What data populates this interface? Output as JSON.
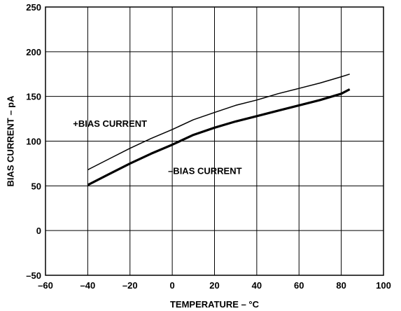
{
  "chart_data": {
    "type": "line",
    "title": "",
    "xlabel": "TEMPERATURE – °C",
    "ylabel": "BIAS CURRENT – pA",
    "xlim": [
      -60,
      100
    ],
    "ylim": [
      -50,
      250
    ],
    "x_ticks": [
      -60,
      -40,
      -20,
      0,
      20,
      40,
      60,
      80,
      100
    ],
    "y_ticks": [
      -50,
      0,
      50,
      100,
      150,
      200,
      250
    ],
    "x_tick_labels": [
      "–60",
      "–40",
      "–20",
      "0",
      "20",
      "40",
      "60",
      "80",
      "100"
    ],
    "y_tick_labels": [
      "–50",
      "0",
      "50",
      "100",
      "150",
      "200",
      "250"
    ],
    "grid": true,
    "series": [
      {
        "name": "+BIAS CURRENT",
        "color": "#000000",
        "weight": "thin",
        "x": [
          -40,
          -30,
          -20,
          -10,
          0,
          10,
          20,
          30,
          40,
          50,
          60,
          70,
          80,
          84
        ],
        "y": [
          68,
          80,
          92,
          103,
          113,
          124,
          132,
          140,
          146,
          153,
          159,
          165,
          172,
          175
        ]
      },
      {
        "name": "–BIAS CURRENT",
        "color": "#000000",
        "weight": "thick",
        "x": [
          -40,
          -30,
          -20,
          -10,
          0,
          10,
          20,
          30,
          40,
          50,
          60,
          70,
          80,
          84
        ],
        "y": [
          51,
          63,
          75,
          86,
          96,
          107,
          115,
          122,
          128,
          134,
          140,
          146,
          153,
          158
        ]
      }
    ],
    "annotations": [
      {
        "text": "+BIAS CURRENT",
        "x": -47,
        "y": 120
      },
      {
        "text": "–BIAS CURRENT",
        "x": -2,
        "y": 67
      }
    ]
  }
}
